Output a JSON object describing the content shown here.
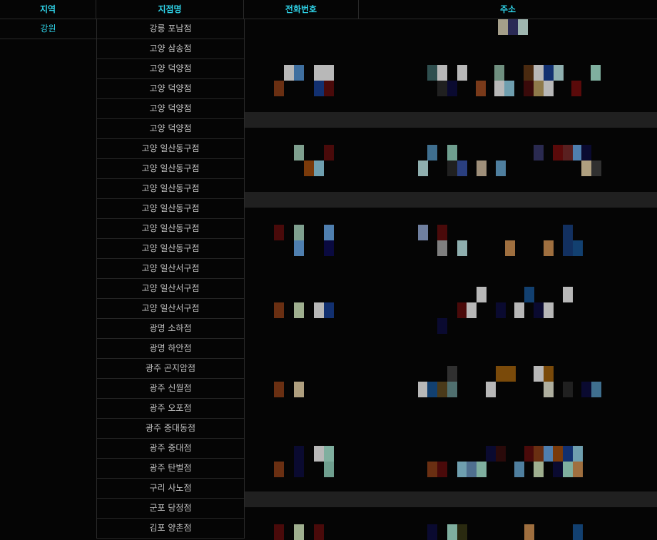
{
  "header": {
    "region_label": "지역",
    "branch_label": "지점명",
    "phone_label": "전화번호",
    "address_label": "주소"
  },
  "region": "강원",
  "branches": [
    "강릉 포남점",
    "고양 삼송점",
    "고양 덕양점",
    "고양 덕양점",
    "고양 덕양점",
    "고양 덕양점",
    "고양 일산동구점",
    "고양 일산동구점",
    "고양 일산동구점",
    "고양 일산동구점",
    "고양 일산동구점",
    "고양 일산동구점",
    "고양 일산서구점",
    "고양 일산서구점",
    "고양 일산서구점",
    "광명 소하점",
    "광명 하안점",
    "광주 곤지암점",
    "광주 신월점",
    "광주 오포점",
    "광주 중대동점",
    "광주 중대점",
    "광주 탄벌점",
    "구리 사노점",
    "군포 당정점",
    "김포 양촌점"
  ],
  "colors": {
    "header_text": "#2fd3e8",
    "region_text": "#2fd3e8",
    "body_text": "#c4c4c4",
    "background": "#050505",
    "grid_line": "#2a2a2a",
    "separator_band": "#202020"
  }
}
